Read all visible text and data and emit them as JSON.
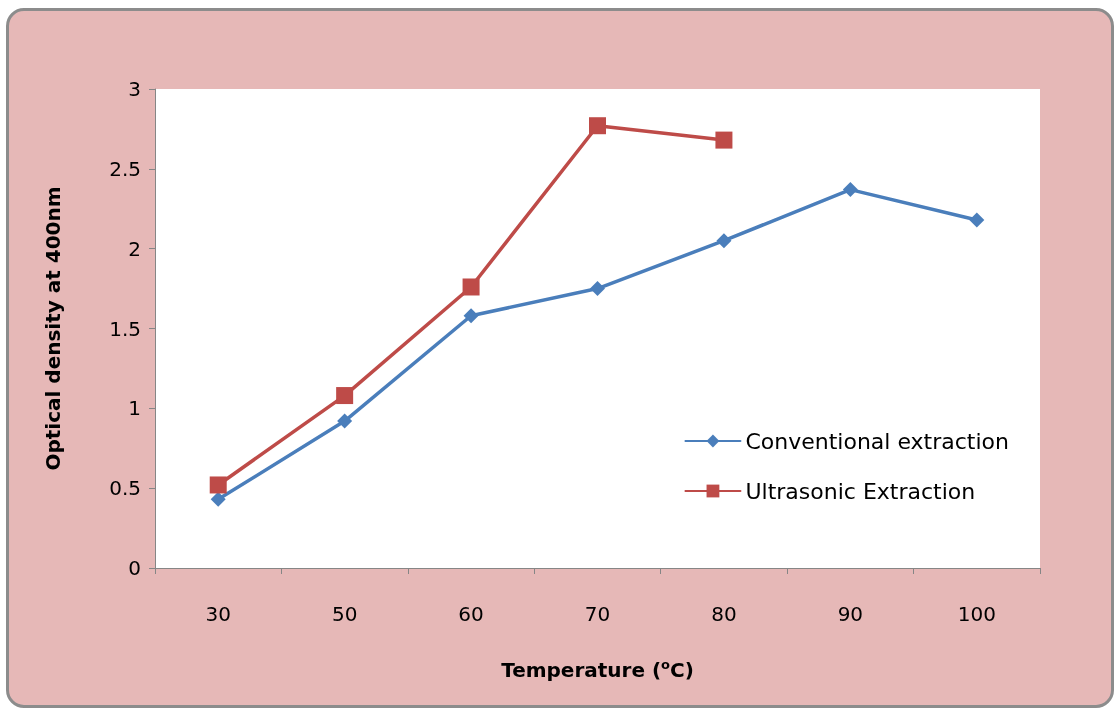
{
  "chart_data": {
    "type": "line",
    "xlabel": "Temperature ($^{o}$C)",
    "ylabel": "Optical density at 400nm",
    "categories": [
      "30",
      "50",
      "60",
      "70",
      "80",
      "90",
      "100"
    ],
    "series": [
      {
        "name": "Conventional extraction",
        "color": "#4a7ebb",
        "marker": "diamond",
        "values": [
          0.43,
          0.92,
          1.58,
          1.75,
          2.05,
          2.37,
          2.18
        ]
      },
      {
        "name": "Ultrasonic Extraction",
        "color": "#be4b48",
        "marker": "square",
        "values": [
          0.52,
          1.08,
          1.76,
          2.77,
          2.68,
          null,
          null
        ]
      }
    ],
    "ylim": [
      0,
      3
    ],
    "yticks": [
      0,
      0.5,
      1,
      1.5,
      2,
      2.5,
      3
    ],
    "grid": false,
    "legend": "right",
    "line_style": "solid"
  }
}
